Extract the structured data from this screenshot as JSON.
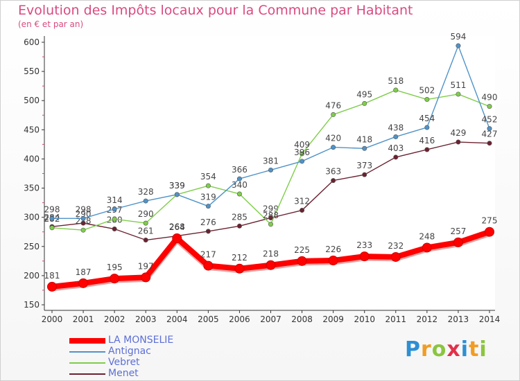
{
  "chart_data": {
    "type": "line",
    "title": "Evolution des Impôts locaux pour la Commune par Habitant",
    "subtitle": "(en € et par an)",
    "xlabel": "",
    "ylabel": "",
    "x": [
      "2000",
      "2001",
      "2002",
      "2003",
      "2004",
      "2005",
      "2006",
      "2007",
      "2008",
      "2009",
      "2010",
      "2011",
      "2012",
      "2013",
      "2014"
    ],
    "ylim": [
      150,
      600
    ],
    "yticks": [
      "150",
      "200",
      "250",
      "300",
      "350",
      "400",
      "450",
      "500",
      "550",
      "600"
    ],
    "grid": false,
    "legend_position": "bottom-left",
    "series": [
      {
        "name": "LA MONSELIE",
        "color": "#ff0000",
        "values": [
          181,
          187,
          195,
          197,
          264,
          217,
          212,
          218,
          225,
          226,
          233,
          232,
          248,
          257,
          275
        ],
        "labels": [
          "181",
          "187",
          "195",
          "197",
          "264",
          "217",
          "212",
          "218",
          "225",
          "226",
          "233",
          "232",
          "248",
          "257",
          "275"
        ]
      },
      {
        "name": "Antignac",
        "color": "#4f93c9",
        "values": [
          298,
          298,
          314,
          328,
          339,
          319,
          366,
          381,
          396,
          420,
          418,
          438,
          454,
          594,
          452
        ],
        "labels": [
          "298",
          "298",
          "314",
          "328",
          "339",
          "319",
          "366",
          "381",
          "396",
          "420",
          "418",
          "438",
          "454",
          "594",
          "452"
        ]
      },
      {
        "name": "Vebret",
        "color": "#7fcd4a",
        "values": [
          282,
          278,
          297,
          290,
          339,
          354,
          340,
          288,
          409,
          476,
          495,
          518,
          502,
          511,
          490
        ],
        "labels": [
          "282",
          "278",
          "297",
          "290",
          "339",
          "354",
          "340",
          "288",
          "409",
          "476",
          "495",
          "518",
          "502",
          "511",
          "490"
        ]
      },
      {
        "name": "Menet",
        "color": "#6b2230",
        "values": [
          284,
          290,
          280,
          261,
          268,
          276,
          285,
          299,
          312,
          363,
          373,
          403,
          416,
          429,
          427
        ],
        "labels": [
          "284",
          "290",
          "280",
          "261",
          "268",
          "276",
          "285",
          "299",
          "312",
          "363",
          "373",
          "403",
          "416",
          "429",
          "427"
        ]
      }
    ]
  },
  "logo": {
    "letters": [
      "P",
      "r",
      "o",
      "x",
      "i",
      "t",
      "i"
    ]
  }
}
